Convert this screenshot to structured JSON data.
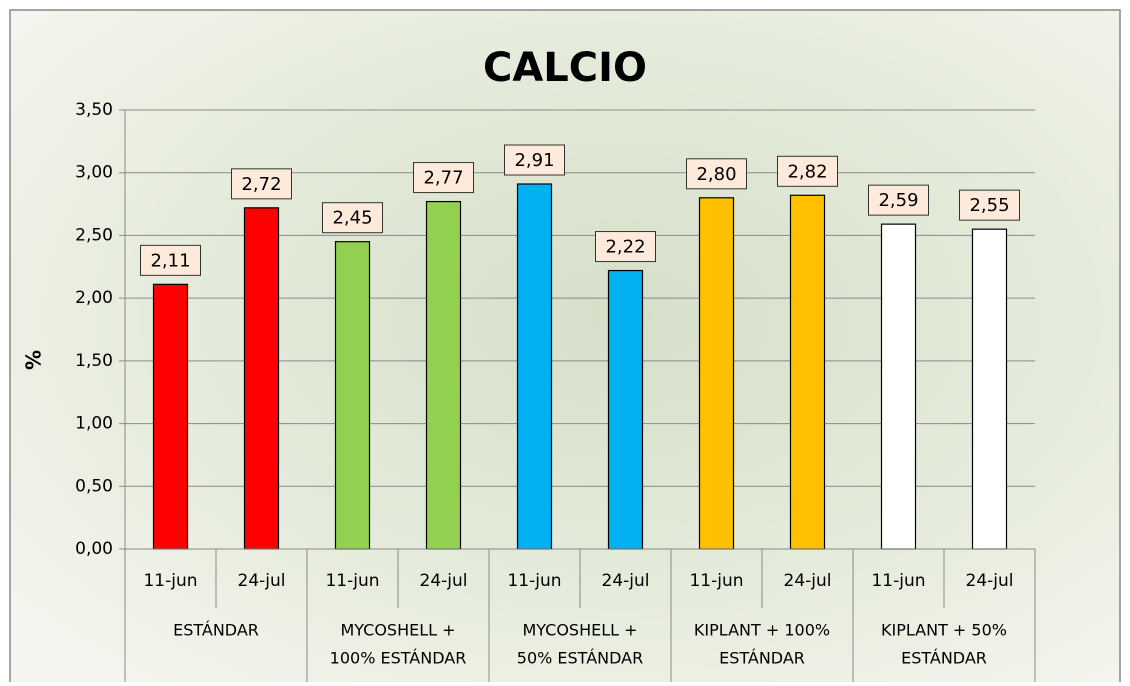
{
  "chart_data": {
    "type": "bar",
    "title": "CALCIO",
    "y_label": "%",
    "ylim": [
      0,
      3.5
    ],
    "yticks": [
      {
        "value": 0,
        "label": "0,00"
      },
      {
        "value": 0.5,
        "label": "0,50"
      },
      {
        "value": 1,
        "label": "1,00"
      },
      {
        "value": 1.5,
        "label": "1,50"
      },
      {
        "value": 2,
        "label": "2,00"
      },
      {
        "value": 2.5,
        "label": "2,50"
      },
      {
        "value": 3,
        "label": "3,00"
      },
      {
        "value": 3.5,
        "label": "3,50"
      }
    ],
    "grid": true,
    "groups": [
      {
        "label": [
          "ESTÁNDAR"
        ],
        "color": "#ff0000",
        "categories": [
          "11-jun",
          "24-jul"
        ],
        "values": [
          2.11,
          2.72
        ],
        "value_labels": [
          "2,11",
          "2,72"
        ]
      },
      {
        "label": [
          "MYCOSHELL +",
          "100% ESTÁNDAR"
        ],
        "color": "#92d050",
        "categories": [
          "11-jun",
          "24-jul"
        ],
        "values": [
          2.45,
          2.77
        ],
        "value_labels": [
          "2,45",
          "2,77"
        ]
      },
      {
        "label": [
          "MYCOSHELL +",
          "50% ESTÁNDAR"
        ],
        "color": "#00b0f0",
        "categories": [
          "11-jun",
          "24-jul"
        ],
        "values": [
          2.91,
          2.22
        ],
        "value_labels": [
          "2,91",
          "2,22"
        ]
      },
      {
        "label": [
          "KIPLANT + 100%",
          "ESTÁNDAR"
        ],
        "color": "#ffc000",
        "categories": [
          "11-jun",
          "24-jul"
        ],
        "values": [
          2.8,
          2.82
        ],
        "value_labels": [
          "2,80",
          "2,82"
        ]
      },
      {
        "label": [
          "KIPLANT + 50%",
          "ESTÁNDAR"
        ],
        "color": "#ffffff",
        "categories": [
          "11-jun",
          "24-jul"
        ],
        "values": [
          2.59,
          2.55
        ],
        "value_labels": [
          "2,59",
          "2,55"
        ]
      }
    ]
  }
}
